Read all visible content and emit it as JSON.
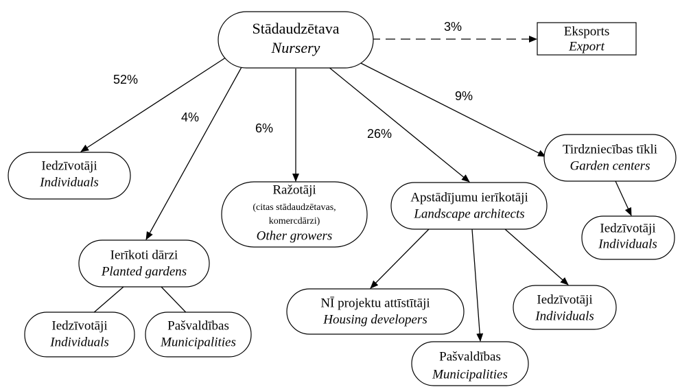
{
  "nodes": [
    {
      "lines": [
        "Stādaudzētava",
        "Nursery"
      ]
    },
    {
      "lines": [
        "Eksports",
        "Export"
      ]
    },
    {
      "lines": [
        "Iedzīvotāji",
        "Individuals"
      ]
    },
    {
      "lines": [
        "Ierīkoti dārzi",
        "Planted gardens"
      ]
    },
    {
      "lines": [
        "Ražotāji",
        "(citas stādaudzētavas,",
        "komercdārzi)",
        "Other growers"
      ]
    },
    {
      "lines": [
        "Apstādījumu ierīkotāji",
        "Landscape architects"
      ]
    },
    {
      "lines": [
        "Tirdzniecības tīkli",
        "Garden centers"
      ]
    },
    {
      "lines": [
        "Iedzīvotāji",
        "Individuals"
      ]
    },
    {
      "lines": [
        "NĪ projektu attīstītāji",
        "Housing developers"
      ]
    },
    {
      "lines": [
        "Iedzīvotāji",
        "Individuals"
      ]
    },
    {
      "lines": [
        "Pašvaldības",
        "Municipalities"
      ]
    },
    {
      "lines": [
        "Iedzīvotāji",
        "Individuals"
      ]
    },
    {
      "lines": [
        "Pašvaldības",
        "Municipalities"
      ]
    }
  ],
  "edge_labels": [
    "3%",
    "52%",
    "4%",
    "6%",
    "26%",
    "9%"
  ]
}
